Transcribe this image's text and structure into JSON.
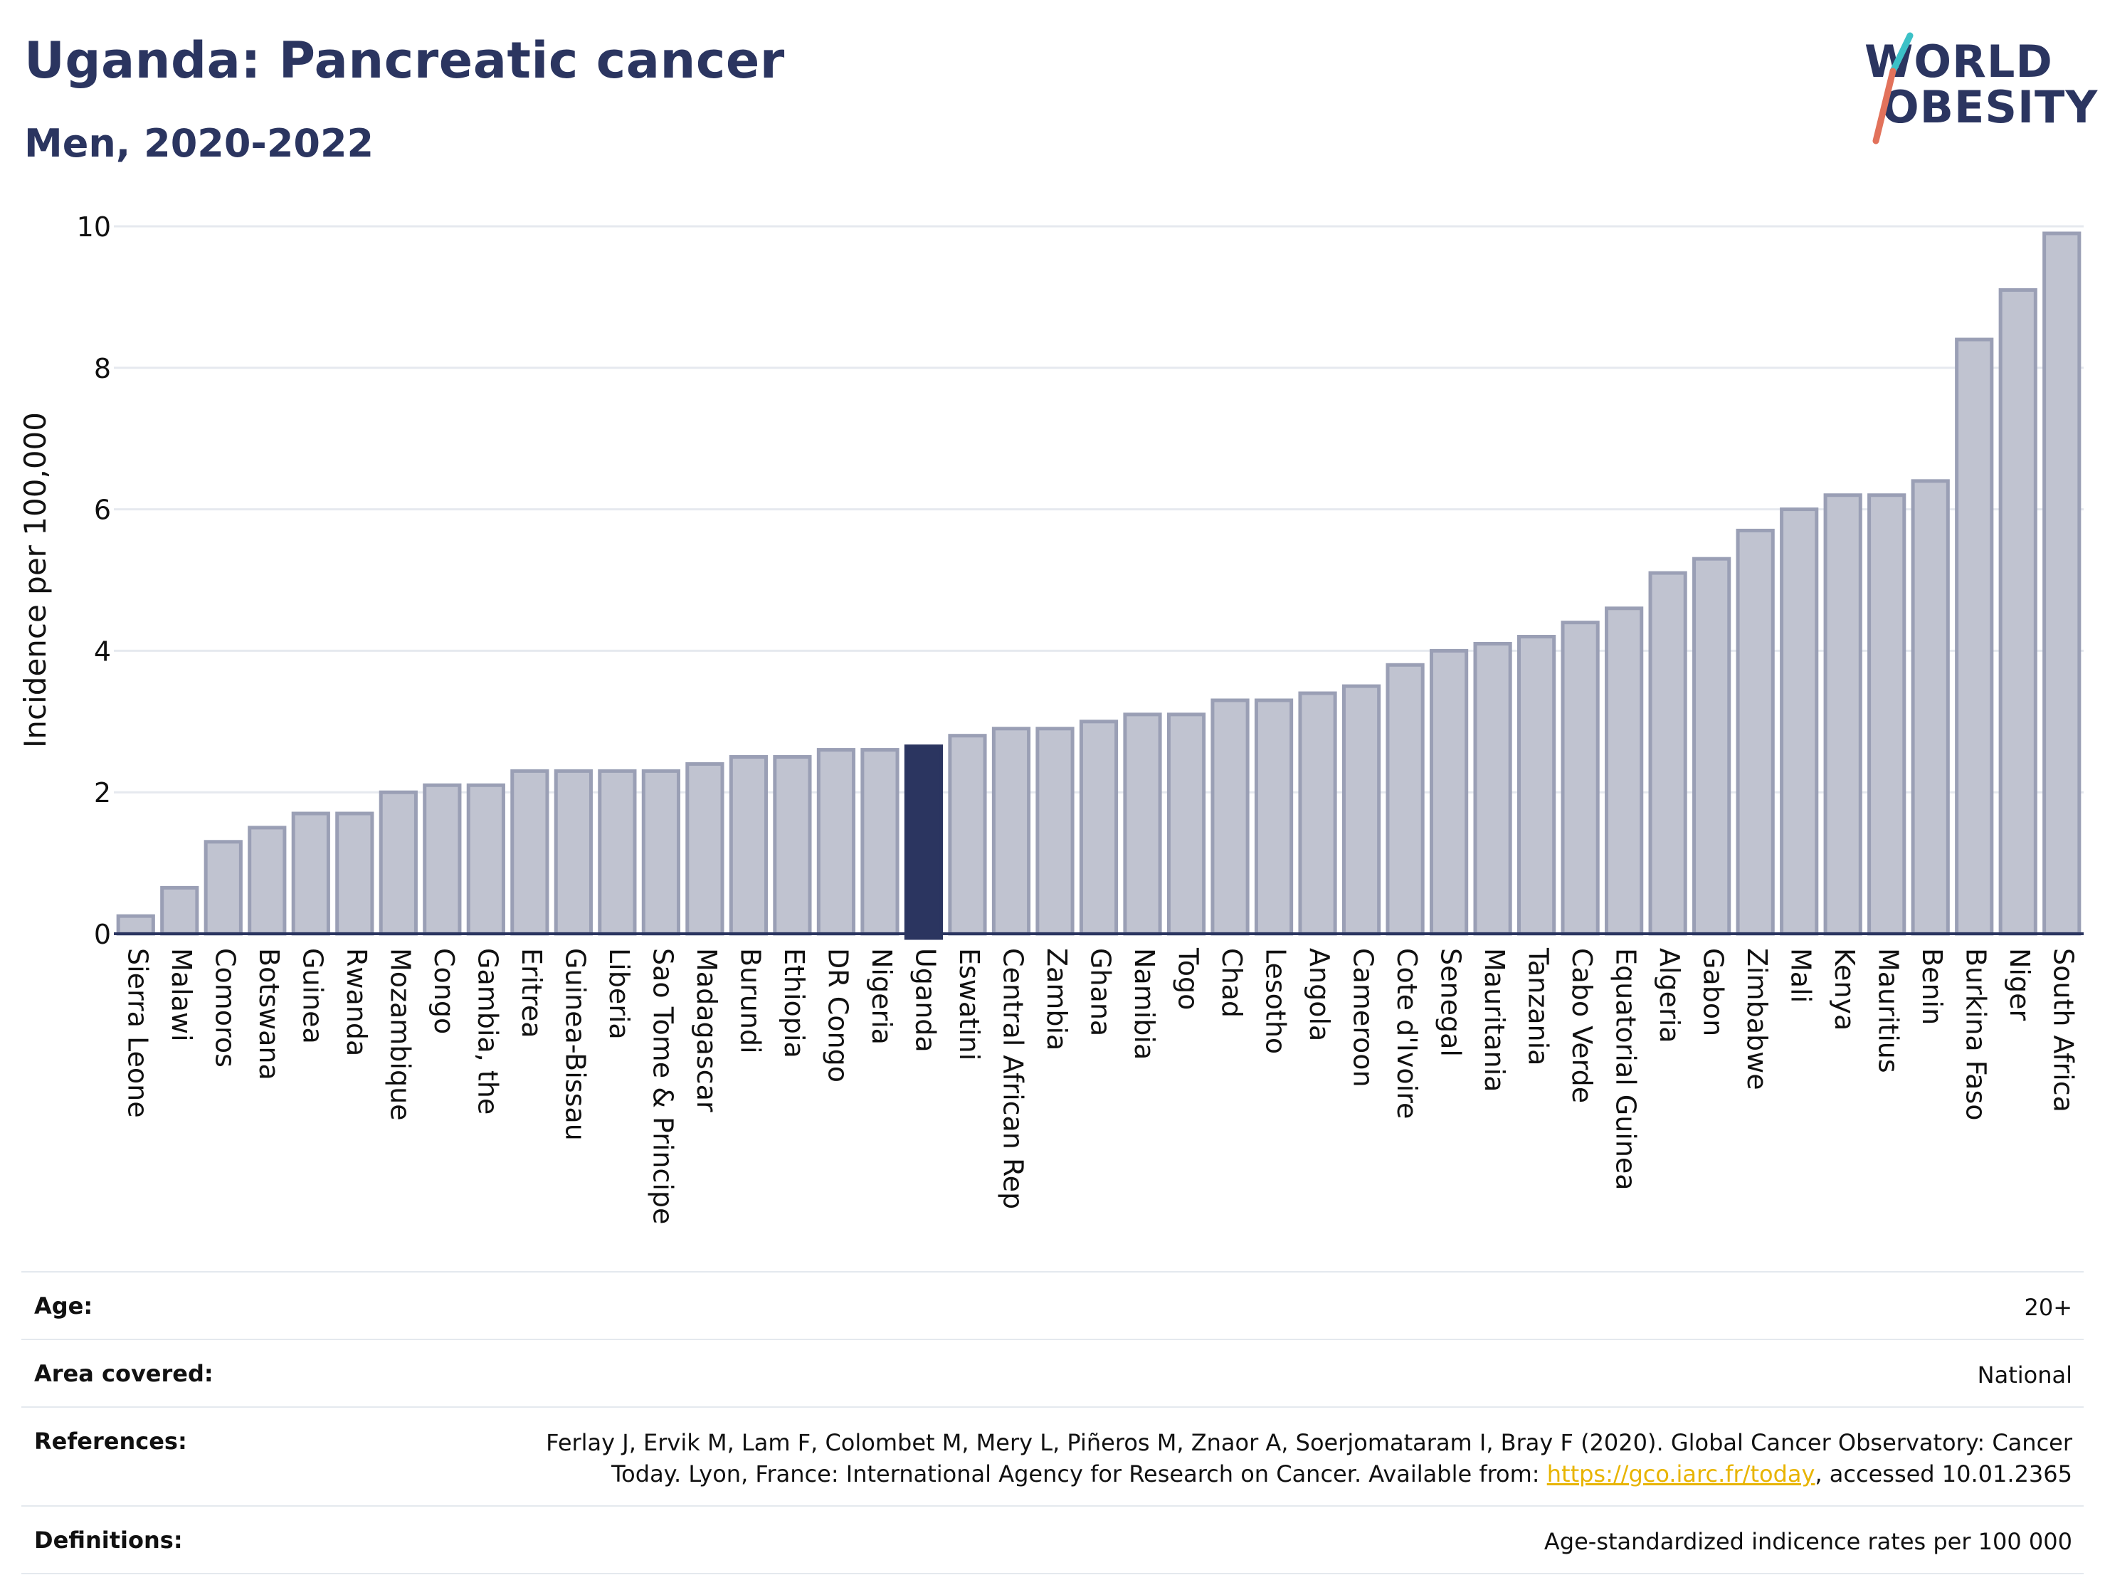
{
  "header": {
    "title": "Uganda: Pancreatic cancer",
    "subtitle": "Men, 2020-2022"
  },
  "logo": {
    "line1": "WORLD",
    "line2": "OBESITY",
    "colors": {
      "text": "#2b3560",
      "slash_top": "#3cc1c7",
      "slash_bottom": "#e2725b"
    }
  },
  "colors": {
    "bar": "#c0c3d0",
    "bar_stroke": "#9a9fb5",
    "highlight": "#2b3560",
    "axis": "#2b3560",
    "grid": "#e6e9ef",
    "text": "#111111"
  },
  "chart_data": {
    "type": "bar",
    "title": "",
    "xlabel": "",
    "ylabel": "Incidence per 100,000",
    "ylim": [
      0,
      10
    ],
    "yticks": [
      0,
      2,
      4,
      6,
      8,
      10
    ],
    "grid": true,
    "highlight": "Uganda",
    "categories": [
      "Sierra Leone",
      "Malawi",
      "Comoros",
      "Botswana",
      "Guinea",
      "Rwanda",
      "Mozambique",
      "Congo",
      "Gambia, the",
      "Eritrea",
      "Guinea-Bissau",
      "Liberia",
      "Sao Tome & Principe",
      "Madagascar",
      "Burundi",
      "Ethiopia",
      "DR Congo",
      "Nigeria",
      "Uganda",
      "Eswatini",
      "Central African Rep",
      "Zambia",
      "Ghana",
      "Namibia",
      "Togo",
      "Chad",
      "Lesotho",
      "Angola",
      "Cameroon",
      "Cote d'Ivoire",
      "Senegal",
      "Mauritania",
      "Tanzania",
      "Cabo Verde",
      "Equatorial Guinea",
      "Algeria",
      "Gabon",
      "Zimbabwe",
      "Mali",
      "Kenya",
      "Mauritius",
      "Benin",
      "Burkina Faso",
      "Niger",
      "South Africa"
    ],
    "values": [
      0.25,
      0.65,
      1.3,
      1.5,
      1.7,
      1.7,
      2.0,
      2.1,
      2.1,
      2.3,
      2.3,
      2.3,
      2.3,
      2.4,
      2.5,
      2.5,
      2.6,
      2.6,
      2.65,
      2.8,
      2.9,
      2.9,
      3.0,
      3.1,
      3.1,
      3.3,
      3.3,
      3.4,
      3.5,
      3.8,
      4.0,
      4.1,
      4.2,
      4.4,
      4.6,
      5.1,
      5.3,
      5.7,
      6.0,
      6.2,
      6.2,
      6.4,
      8.4,
      9.1,
      9.9
    ]
  },
  "info": [
    {
      "label": "Age:",
      "value": "20+"
    },
    {
      "label": "Area covered:",
      "value": "National"
    },
    {
      "label": "References:",
      "value_line1": "Ferlay J, Ervik M, Lam F, Colombet M, Mery L, Piñeros M, Znaor A, Soerjomataram I, Bray F (2020). Global Cancer Observatory: Cancer",
      "value_line2_pre": "Today. Lyon, France: International Agency for Research on Cancer. Available from: ",
      "link": "https://gco.iarc.fr/today",
      "value_line2_post": ", accessed 10.01.2365"
    },
    {
      "label": "Definitions:",
      "value": "Age-standardized indicence rates per 100 000"
    }
  ]
}
